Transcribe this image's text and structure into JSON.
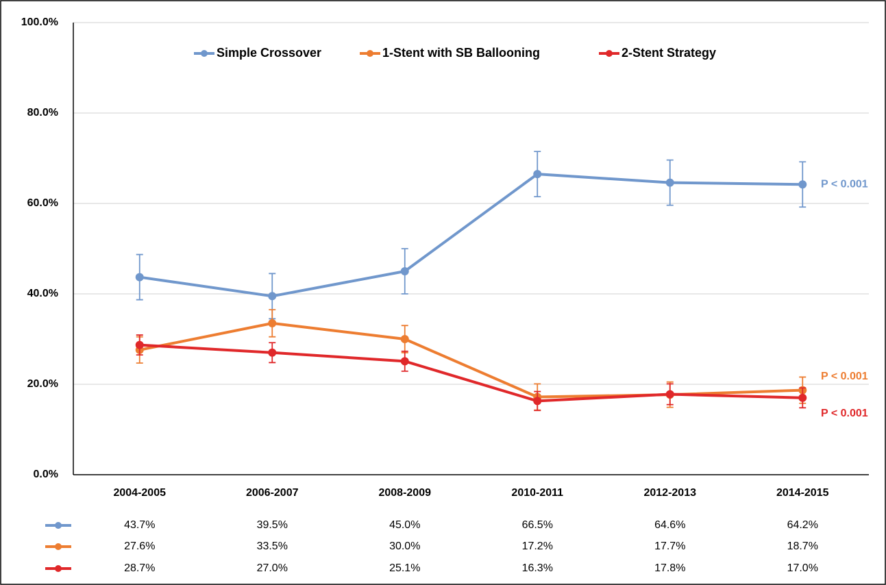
{
  "chart_data": {
    "type": "line",
    "categories": [
      "2004-2005",
      "2006-2007",
      "2008-2009",
      "2010-2011",
      "2012-2013",
      "2014-2015"
    ],
    "ylim": [
      0,
      100
    ],
    "yticks": [
      {
        "value": 0,
        "label": "0.0%"
      },
      {
        "value": 20,
        "label": "20.0%"
      },
      {
        "value": 40,
        "label": "40.0%"
      },
      {
        "value": 60,
        "label": "60.0%"
      },
      {
        "value": 80,
        "label": "80.0%"
      },
      {
        "value": 100,
        "label": "100.0%"
      }
    ],
    "grid": true,
    "legend": "top",
    "series": [
      {
        "name": "Simple Crossover",
        "color": "#7097cc",
        "values": [
          43.7,
          39.5,
          45.0,
          66.5,
          64.6,
          64.2
        ],
        "value_labels": [
          "43.7%",
          "39.5%",
          "45.0%",
          "66.5%",
          "64.6%",
          "64.2%"
        ],
        "errors": [
          5.0,
          5.0,
          5.0,
          5.0,
          5.0,
          5.0
        ],
        "annotation": "P < 0.001"
      },
      {
        "name": "1-Stent with SB Ballooning",
        "color": "#ed7d31",
        "values": [
          27.6,
          33.5,
          30.0,
          17.2,
          17.7,
          18.7
        ],
        "value_labels": [
          "27.6%",
          "33.5%",
          "30.0%",
          "17.2%",
          "17.7%",
          "18.7%"
        ],
        "errors": [
          2.9,
          3.0,
          3.0,
          2.9,
          2.8,
          2.9
        ],
        "annotation": "P < 0.001"
      },
      {
        "name": "2-Stent Strategy",
        "color": "#e0282a",
        "values": [
          28.7,
          27.0,
          25.1,
          16.3,
          17.8,
          17.0
        ],
        "value_labels": [
          "28.7%",
          "27.0%",
          "25.1%",
          "16.3%",
          "17.8%",
          "17.0%"
        ],
        "errors": [
          2.2,
          2.2,
          2.2,
          2.1,
          2.3,
          2.2
        ],
        "annotation": "P < 0.001"
      }
    ]
  }
}
